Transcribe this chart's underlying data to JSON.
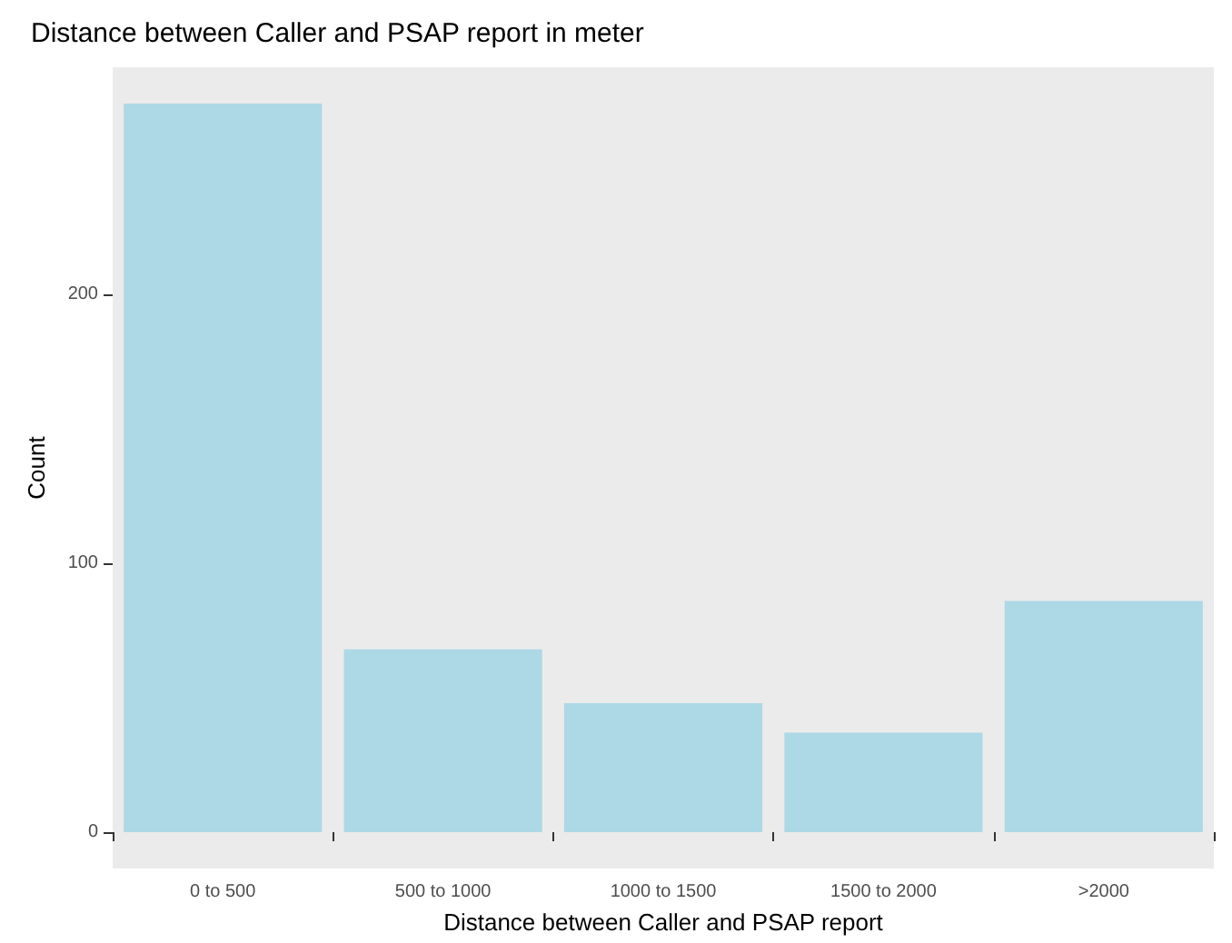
{
  "chart_data": {
    "type": "bar",
    "title": "Distance between Caller and PSAP report in meter",
    "xlabel": "Distance between Caller and PSAP report",
    "ylabel": "Count",
    "categories": [
      "0 to 500",
      "500 to 1000",
      "1000 to 1500",
      "1500 to 2000",
      ">2000"
    ],
    "values": [
      271,
      68,
      48,
      37,
      86
    ],
    "color": "#add8e6",
    "ylim": [
      -13.5,
      284.5
    ],
    "yticks": [
      0,
      100,
      200
    ],
    "grid": false
  }
}
